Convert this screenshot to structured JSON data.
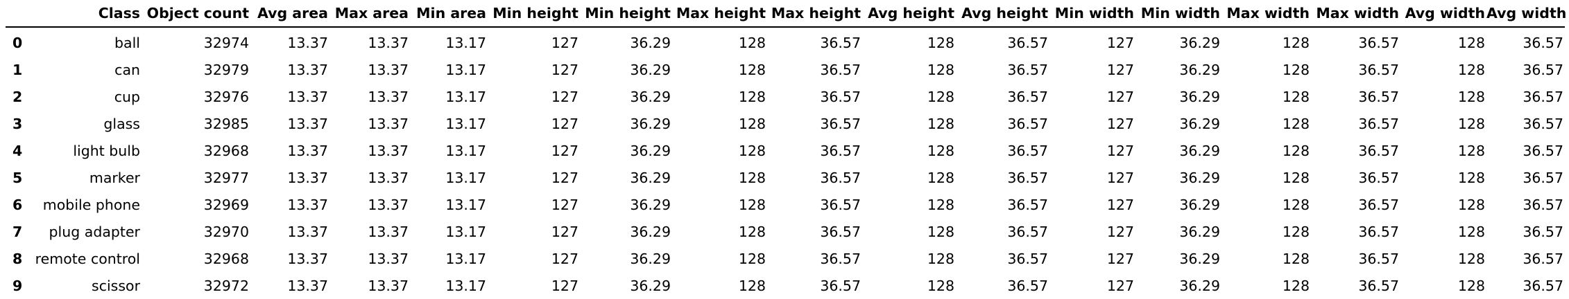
{
  "table": {
    "columns": [
      "",
      "Class",
      "Object count",
      "Avg area",
      "Max area",
      "Min area",
      "Min height",
      "Min height",
      "Max height",
      "Max height",
      "Avg height",
      "Avg height",
      "Min width",
      "Min width",
      "Max width",
      "Max width",
      "Avg width",
      "Avg width"
    ],
    "rows": [
      [
        "0",
        "ball",
        "32974",
        "13.37",
        "13.37",
        "13.17",
        "127",
        "36.29",
        "128",
        "36.57",
        "128",
        "36.57",
        "127",
        "36.29",
        "128",
        "36.57",
        "128",
        "36.57"
      ],
      [
        "1",
        "can",
        "32979",
        "13.37",
        "13.37",
        "13.17",
        "127",
        "36.29",
        "128",
        "36.57",
        "128",
        "36.57",
        "127",
        "36.29",
        "128",
        "36.57",
        "128",
        "36.57"
      ],
      [
        "2",
        "cup",
        "32976",
        "13.37",
        "13.37",
        "13.17",
        "127",
        "36.29",
        "128",
        "36.57",
        "128",
        "36.57",
        "127",
        "36.29",
        "128",
        "36.57",
        "128",
        "36.57"
      ],
      [
        "3",
        "glass",
        "32985",
        "13.37",
        "13.37",
        "13.17",
        "127",
        "36.29",
        "128",
        "36.57",
        "128",
        "36.57",
        "127",
        "36.29",
        "128",
        "36.57",
        "128",
        "36.57"
      ],
      [
        "4",
        "light bulb",
        "32968",
        "13.37",
        "13.37",
        "13.17",
        "127",
        "36.29",
        "128",
        "36.57",
        "128",
        "36.57",
        "127",
        "36.29",
        "128",
        "36.57",
        "128",
        "36.57"
      ],
      [
        "5",
        "marker",
        "32977",
        "13.37",
        "13.37",
        "13.17",
        "127",
        "36.29",
        "128",
        "36.57",
        "128",
        "36.57",
        "127",
        "36.29",
        "128",
        "36.57",
        "128",
        "36.57"
      ],
      [
        "6",
        "mobile phone",
        "32969",
        "13.37",
        "13.37",
        "13.17",
        "127",
        "36.29",
        "128",
        "36.57",
        "128",
        "36.57",
        "127",
        "36.29",
        "128",
        "36.57",
        "128",
        "36.57"
      ],
      [
        "7",
        "plug adapter",
        "32970",
        "13.37",
        "13.37",
        "13.17",
        "127",
        "36.29",
        "128",
        "36.57",
        "128",
        "36.57",
        "127",
        "36.29",
        "128",
        "36.57",
        "128",
        "36.57"
      ],
      [
        "8",
        "remote control",
        "32968",
        "13.37",
        "13.37",
        "13.17",
        "127",
        "36.29",
        "128",
        "36.57",
        "128",
        "36.57",
        "127",
        "36.29",
        "128",
        "36.57",
        "128",
        "36.57"
      ],
      [
        "9",
        "scissor",
        "32972",
        "13.37",
        "13.37",
        "13.17",
        "127",
        "36.29",
        "128",
        "36.57",
        "128",
        "36.57",
        "127",
        "36.29",
        "128",
        "36.57",
        "128",
        "36.57"
      ]
    ]
  }
}
